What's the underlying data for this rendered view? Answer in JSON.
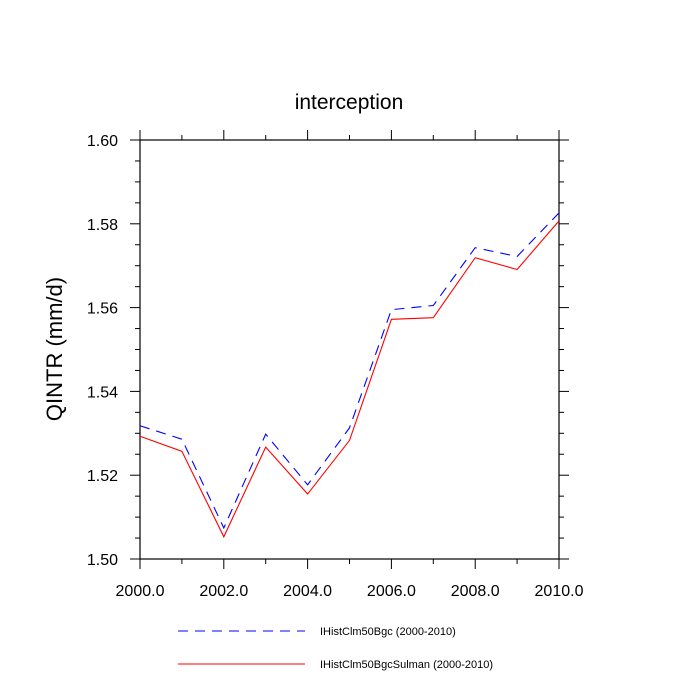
{
  "chart_data": {
    "type": "line",
    "title": "interception",
    "xlabel": "",
    "ylabel": "QINTR  (mm/d)",
    "xlim": [
      2000,
      2010
    ],
    "ylim": [
      1.5,
      1.6
    ],
    "x_ticks": [
      "2000.0",
      "2002.0",
      "2004.0",
      "2006.0",
      "2008.0",
      "2010.0"
    ],
    "y_ticks": [
      "1.50",
      "1.52",
      "1.54",
      "1.56",
      "1.58",
      "1.60"
    ],
    "x": [
      2000,
      2001,
      2002,
      2003,
      2004,
      2005,
      2006,
      2007,
      2008,
      2009,
      2010
    ],
    "series": [
      {
        "name": "IHistClm50Bgc (2000-2010)",
        "color": "#0000ff",
        "dash": "dashed",
        "values": [
          1.5318,
          1.5286,
          1.5074,
          1.5298,
          1.5177,
          1.5313,
          1.5595,
          1.5605,
          1.5743,
          1.5722,
          1.5826
        ]
      },
      {
        "name": "IHistClm50BgcSulman (2000-2010)",
        "color": "#ff0000",
        "dash": "solid",
        "values": [
          1.5293,
          1.5257,
          1.5053,
          1.5267,
          1.5155,
          1.5283,
          1.5572,
          1.5576,
          1.5719,
          1.5691,
          1.5807
        ]
      }
    ],
    "grid": false,
    "legend_position": "bottom"
  }
}
